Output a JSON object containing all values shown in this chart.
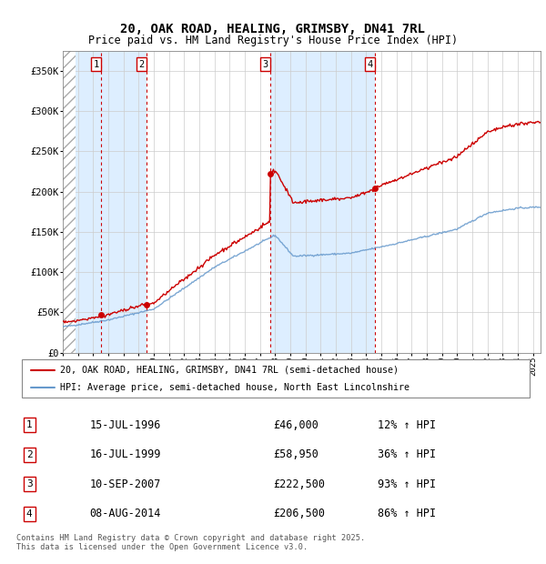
{
  "title": "20, OAK ROAD, HEALING, GRIMSBY, DN41 7RL",
  "subtitle": "Price paid vs. HM Land Registry's House Price Index (HPI)",
  "legend_line1": "20, OAK ROAD, HEALING, GRIMSBY, DN41 7RL (semi-detached house)",
  "legend_line2": "HPI: Average price, semi-detached house, North East Lincolnshire",
  "footer": "Contains HM Land Registry data © Crown copyright and database right 2025.\nThis data is licensed under the Open Government Licence v3.0.",
  "transactions": [
    {
      "num": 1,
      "date_str": "15-JUL-1996",
      "date_x": 1996.54,
      "price": 46000,
      "pct": "12% ↑ HPI"
    },
    {
      "num": 2,
      "date_str": "16-JUL-1999",
      "date_x": 1999.54,
      "price": 58950,
      "pct": "36% ↑ HPI"
    },
    {
      "num": 3,
      "date_str": "10-SEP-2007",
      "date_x": 2007.69,
      "price": 222500,
      "pct": "93% ↑ HPI"
    },
    {
      "num": 4,
      "date_str": "08-AUG-2014",
      "date_x": 2014.6,
      "price": 206500,
      "pct": "86% ↑ HPI"
    }
  ],
  "ylim": [
    0,
    375000
  ],
  "xlim": [
    1994.0,
    2025.5
  ],
  "yticks": [
    0,
    50000,
    100000,
    150000,
    200000,
    250000,
    300000,
    350000
  ],
  "ytick_labels": [
    "£0",
    "£50K",
    "£100K",
    "£150K",
    "£200K",
    "£250K",
    "£300K",
    "£350K"
  ],
  "hatch_end_x": 1994.83,
  "red_line_color": "#cc0000",
  "blue_line_color": "#6699cc",
  "transaction_box_color": "#cc0000",
  "shaded_region_color": "#ddeeff",
  "hatch_color": "#bbbbbb",
  "table_data": [
    [
      1,
      "15-JUL-1996",
      "£46,000",
      "12% ↑ HPI"
    ],
    [
      2,
      "16-JUL-1999",
      "£58,950",
      "36% ↑ HPI"
    ],
    [
      3,
      "10-SEP-2007",
      "£222,500",
      "93% ↑ HPI"
    ],
    [
      4,
      "08-AUG-2014",
      "£206,500",
      "86% ↑ HPI"
    ]
  ]
}
